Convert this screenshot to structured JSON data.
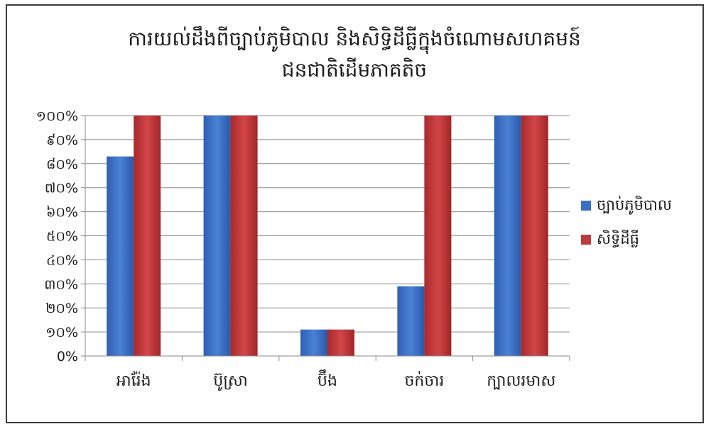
{
  "chart_data": {
    "type": "bar",
    "title": "ការយល់ដឹងពីច្បាប់ភូមិបាល  និងសិទ្ធិដីធ្លីក្នុងចំណោមសហគមន៍ ជនជាតិដើមភាគតិច",
    "title_lines": [
      "ការយល់ដឹងពីច្បាប់ភូមិបាល  និងសិទ្ធិដីធ្លីក្នុងចំណោមសហគមន៍",
      "ជនជាតិដើមភាគតិច"
    ],
    "categories": [
      "អារ៉ែង",
      "ប៊ូស្រា",
      "ប៊ឹង",
      "ចក់ចារ",
      "ក្បាលរមាស"
    ],
    "series": [
      {
        "name": "ច្បាប់ភូមិបាល",
        "values": [
          83,
          100,
          11,
          29,
          100
        ],
        "color": "#3a6fc4"
      },
      {
        "name": "សិទ្ធិដីធ្លី",
        "values": [
          100,
          100,
          11,
          100,
          100
        ],
        "color": "#c0393b"
      }
    ],
    "ylim": [
      0,
      100
    ],
    "y_ticks": [
      0,
      10,
      20,
      30,
      40,
      50,
      60,
      70,
      80,
      90,
      100
    ],
    "y_tick_labels": [
      "0%",
      "១០%",
      "២០%",
      "៣០%",
      "៤០%",
      "៥០%",
      "៦០%",
      "៧០%",
      "៨០%",
      "៩០%",
      "១០០%"
    ],
    "xlabel": "",
    "ylabel": "",
    "grid": true,
    "legend_position": "right"
  }
}
